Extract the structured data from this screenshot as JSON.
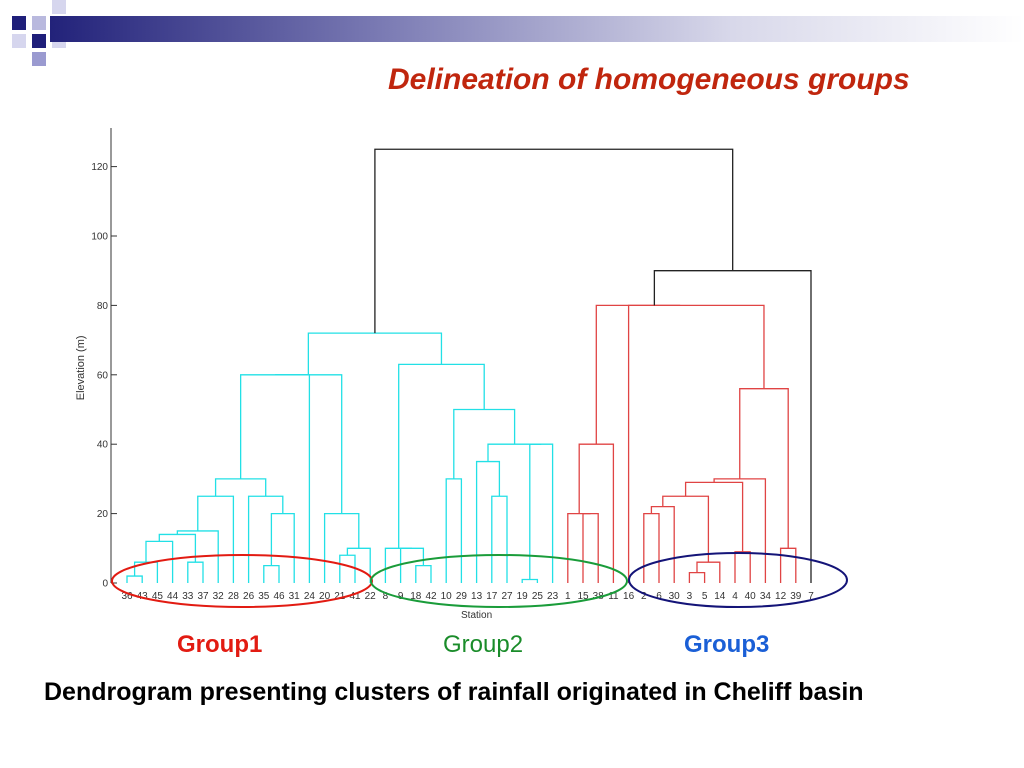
{
  "slide": {
    "title": "Delineation of homogeneous groups",
    "caption": "Dendrogram presenting clusters of rainfall originated in Cheliff basin"
  },
  "colors": {
    "title": "#c0260e",
    "cluster_cyan": "#22e0e6",
    "cluster_red": "#e04444",
    "top_links": "#222222",
    "group1": "#e21b12",
    "group2": "#1a9c3a",
    "group3": "#141478"
  },
  "groups": [
    {
      "label": "Group1",
      "color": "#e21b12"
    },
    {
      "label": "Group2",
      "color": "#1a8c2a"
    },
    {
      "label": "Group3",
      "color": "#1a5fd6"
    }
  ],
  "chart_data": {
    "type": "dendrogram",
    "xlabel": "Station",
    "ylabel": "Elevation (m)",
    "ylim": [
      0,
      125
    ],
    "yticks": [
      0,
      20,
      40,
      60,
      80,
      100,
      120
    ],
    "leaves": [
      "36",
      "43",
      "45",
      "44",
      "33",
      "37",
      "32",
      "28",
      "26",
      "35",
      "46",
      "31",
      "24",
      "20",
      "21",
      "41",
      "22",
      "8",
      "9",
      "18",
      "42",
      "10",
      "29",
      "13",
      "17",
      "27",
      "19",
      "25",
      "23",
      "1",
      "15",
      "38",
      "11",
      "16",
      "2",
      "6",
      "30",
      "3",
      "5",
      "14",
      "4",
      "40",
      "34",
      "12",
      "39",
      "7"
    ],
    "merges": [
      {
        "l": "L0",
        "r": "L1",
        "h": 2,
        "c": "cyan"
      },
      {
        "l": "N0",
        "r": "L2",
        "h": 6,
        "c": "cyan"
      },
      {
        "l": "N1",
        "r": "L3",
        "h": 12,
        "c": "cyan"
      },
      {
        "l": "L4",
        "r": "L5",
        "h": 6,
        "c": "cyan"
      },
      {
        "l": "N2",
        "r": "N3",
        "h": 14,
        "c": "cyan"
      },
      {
        "l": "N4",
        "r": "L6",
        "h": 15,
        "c": "cyan"
      },
      {
        "l": "N5",
        "r": "L7",
        "h": 25,
        "c": "cyan"
      },
      {
        "l": "L9",
        "r": "L10",
        "h": 5,
        "c": "cyan"
      },
      {
        "l": "N7",
        "r": "L11",
        "h": 20,
        "c": "cyan"
      },
      {
        "l": "L8",
        "r": "N8",
        "h": 25,
        "c": "cyan"
      },
      {
        "l": "N6",
        "r": "N9",
        "h": 30,
        "c": "cyan"
      },
      {
        "l": "N10",
        "r": "L12",
        "h": 60,
        "c": "cyan"
      },
      {
        "l": "L14",
        "r": "L15",
        "h": 8,
        "c": "cyan"
      },
      {
        "l": "N12",
        "r": "L16",
        "h": 10,
        "c": "cyan"
      },
      {
        "l": "L13",
        "r": "N13",
        "h": 20,
        "c": "cyan"
      },
      {
        "l": "N11",
        "r": "N14",
        "h": 60,
        "c": "cyan"
      },
      {
        "l": "L19",
        "r": "L20",
        "h": 5,
        "c": "cyan"
      },
      {
        "l": "L18",
        "r": "N16",
        "h": 10,
        "c": "cyan"
      },
      {
        "l": "L17",
        "r": "N17",
        "h": 10,
        "c": "cyan"
      },
      {
        "l": "L21",
        "r": "L22",
        "h": 30,
        "c": "cyan"
      },
      {
        "l": "L24",
        "r": "L25",
        "h": 25,
        "c": "cyan"
      },
      {
        "l": "L23",
        "r": "N20",
        "h": 35,
        "c": "cyan"
      },
      {
        "l": "L26",
        "r": "L27",
        "h": 1,
        "c": "cyan"
      },
      {
        "l": "N22",
        "r": "L28",
        "h": 40,
        "c": "cyan"
      },
      {
        "l": "N21",
        "r": "N23",
        "h": 40,
        "c": "cyan"
      },
      {
        "l": "N19",
        "r": "N24",
        "h": 50,
        "c": "cyan"
      },
      {
        "l": "N18",
        "r": "N25",
        "h": 63,
        "c": "cyan"
      },
      {
        "l": "N15",
        "r": "N26",
        "h": 72,
        "c": "cyan"
      },
      {
        "l": "L30",
        "r": "L31",
        "h": 20,
        "c": "red"
      },
      {
        "l": "L29",
        "r": "N28",
        "h": 20,
        "c": "red"
      },
      {
        "l": "N29",
        "r": "L32",
        "h": 40,
        "c": "red"
      },
      {
        "l": "L34",
        "r": "L35",
        "h": 20,
        "c": "red"
      },
      {
        "l": "N31",
        "r": "L36",
        "h": 22,
        "c": "red"
      },
      {
        "l": "L37",
        "r": "L38",
        "h": 3,
        "c": "red"
      },
      {
        "l": "N33",
        "r": "L39",
        "h": 6,
        "c": "red"
      },
      {
        "l": "N32",
        "r": "N34",
        "h": 25,
        "c": "red"
      },
      {
        "l": "L40",
        "r": "L41",
        "h": 9,
        "c": "red"
      },
      {
        "l": "N35",
        "r": "N36",
        "h": 29,
        "c": "red"
      },
      {
        "l": "N37",
        "r": "L42",
        "h": 30,
        "c": "red"
      },
      {
        "l": "L43",
        "r": "L44",
        "h": 10,
        "c": "red"
      },
      {
        "l": "N38",
        "r": "N39",
        "h": 56,
        "c": "red"
      },
      {
        "l": "N30",
        "r": "N40",
        "h": 80,
        "c": "red"
      },
      {
        "l": "L33",
        "r": "N41",
        "h": 80,
        "c": "red"
      },
      {
        "l": "N42",
        "r": "L45",
        "h": 90,
        "c": "black"
      },
      {
        "l": "N27",
        "r": "N43",
        "h": 125,
        "c": "black"
      }
    ]
  }
}
